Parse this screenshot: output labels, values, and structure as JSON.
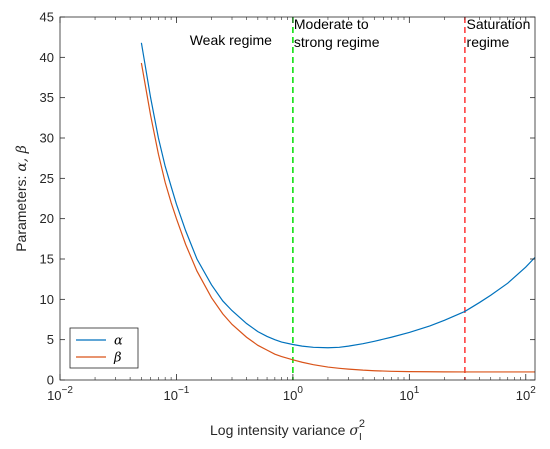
{
  "chart_data": {
    "type": "line",
    "x_scale": "log",
    "xlim": [
      0.01,
      120
    ],
    "ylim": [
      0,
      45
    ],
    "x_ticks": [
      {
        "value": 0.01,
        "base": "10",
        "exp": "−2"
      },
      {
        "value": 0.1,
        "base": "10",
        "exp": "−1"
      },
      {
        "value": 1,
        "base": "10",
        "exp": "0"
      },
      {
        "value": 10,
        "base": "10",
        "exp": "1"
      },
      {
        "value": 100,
        "base": "10",
        "exp": "2"
      }
    ],
    "y_ticks": [
      "0",
      "5",
      "10",
      "15",
      "20",
      "25",
      "30",
      "35",
      "40",
      "45"
    ],
    "xlabel": {
      "text": "Log intensity variance ",
      "symbol": "σ",
      "sup": "2",
      "sub": "I"
    },
    "ylabel": {
      "text": "Parameters: ",
      "symbols": "α, β"
    },
    "grid": false,
    "legend_position": "bottom-left",
    "series": [
      {
        "name": "α",
        "color": "#0072BD",
        "x": [
          0.05,
          0.06,
          0.07,
          0.08,
          0.09,
          0.1,
          0.12,
          0.15,
          0.2,
          0.25,
          0.3,
          0.4,
          0.5,
          0.6,
          0.7,
          0.8,
          1.0,
          1.2,
          1.5,
          2.0,
          2.5,
          3.0,
          4.0,
          5.0,
          7.0,
          10,
          15,
          20,
          30,
          40,
          50,
          70,
          100,
          120
        ],
        "y": [
          41.8,
          35.0,
          30.0,
          26.5,
          24.0,
          21.8,
          18.5,
          15.0,
          11.8,
          9.8,
          8.6,
          7.0,
          6.0,
          5.4,
          5.0,
          4.7,
          4.4,
          4.2,
          4.05,
          4.0,
          4.05,
          4.2,
          4.5,
          4.8,
          5.3,
          5.9,
          6.7,
          7.4,
          8.5,
          9.6,
          10.5,
          12.0,
          14.0,
          15.2
        ]
      },
      {
        "name": "β",
        "color": "#D95319",
        "x": [
          0.05,
          0.06,
          0.07,
          0.08,
          0.09,
          0.1,
          0.12,
          0.15,
          0.2,
          0.25,
          0.3,
          0.4,
          0.5,
          0.6,
          0.7,
          0.8,
          1.0,
          1.2,
          1.5,
          2.0,
          2.5,
          3.0,
          4.0,
          5.0,
          7.0,
          10,
          15,
          20,
          30,
          40,
          50,
          70,
          100,
          120
        ],
        "y": [
          39.3,
          32.8,
          28.0,
          24.5,
          22.0,
          20.0,
          16.8,
          13.5,
          10.2,
          8.2,
          6.9,
          5.3,
          4.3,
          3.7,
          3.2,
          2.9,
          2.5,
          2.2,
          1.9,
          1.6,
          1.45,
          1.35,
          1.22,
          1.15,
          1.08,
          1.04,
          1.02,
          1.01,
          1.0,
          1.0,
          1.0,
          1.0,
          1.0,
          1.0
        ]
      }
    ],
    "vertical_lines": [
      {
        "x": 1,
        "color": "#00DD00",
        "style": "dashed"
      },
      {
        "x": 30,
        "color": "#FF3333",
        "style": "dashed"
      }
    ],
    "annotations": [
      {
        "lines": [
          "Weak regime"
        ],
        "x": 0.13,
        "y": 41.5
      },
      {
        "lines": [
          "Moderate to",
          "strong regime"
        ],
        "x": 1.02,
        "y": 43.5
      },
      {
        "lines": [
          "Saturation",
          "regime"
        ],
        "x": 31,
        "y": 43.5
      }
    ]
  }
}
